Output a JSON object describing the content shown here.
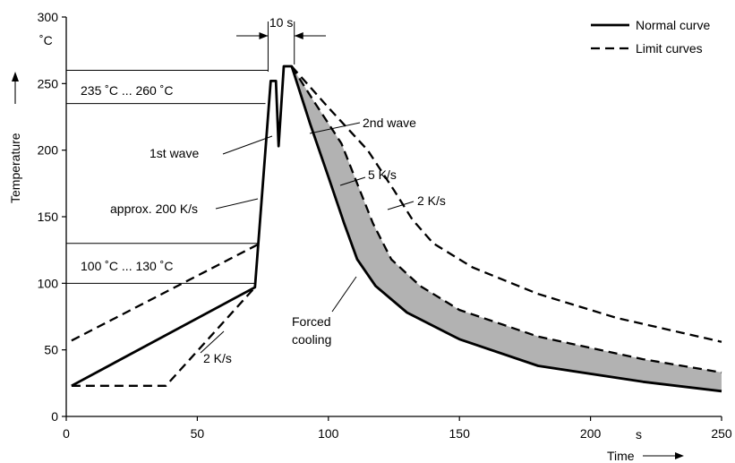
{
  "chart_data": {
    "type": "line",
    "xlabel": "Time",
    "ylabel": "Temperature",
    "x_unit": "s",
    "y_unit": "˚C",
    "xlim": [
      0,
      250
    ],
    "ylim": [
      0,
      300
    ],
    "x_ticks": [
      0,
      50,
      100,
      150,
      200,
      250
    ],
    "y_ticks": [
      0,
      50,
      100,
      150,
      200,
      250,
      300
    ],
    "grid": false,
    "legend_position": "top-right",
    "series": [
      {
        "name": "Normal curve",
        "style": "solid",
        "points": [
          [
            2,
            23
          ],
          [
            72,
            97
          ],
          [
            78,
            252
          ],
          [
            80,
            252
          ],
          [
            81,
            203
          ],
          [
            83,
            263
          ],
          [
            86,
            263
          ],
          [
            93,
            220
          ],
          [
            100,
            180
          ],
          [
            106,
            145
          ],
          [
            111,
            118
          ],
          [
            118,
            98
          ],
          [
            130,
            78
          ],
          [
            150,
            58
          ],
          [
            180,
            38
          ],
          [
            220,
            26
          ],
          [
            250,
            19
          ]
        ]
      },
      {
        "name": "Limit curves",
        "style": "dashed",
        "points": [
          [
            2,
            57
          ],
          [
            73,
            129
          ]
        ]
      },
      {
        "name": "Limit curves",
        "style": "dashed",
        "points": [
          [
            2,
            23
          ],
          [
            38,
            23
          ],
          [
            72,
            97
          ]
        ]
      },
      {
        "name": "Limit curves",
        "style": "dashed",
        "points": [
          [
            86,
            263
          ],
          [
            95,
            235
          ],
          [
            105,
            205
          ],
          [
            112,
            170
          ],
          [
            117,
            145
          ],
          [
            124,
            118
          ],
          [
            135,
            98
          ],
          [
            150,
            80
          ],
          [
            180,
            60
          ],
          [
            220,
            43
          ],
          [
            250,
            33
          ]
        ]
      },
      {
        "name": "Limit curves",
        "style": "dashed",
        "points": [
          [
            86,
            263
          ],
          [
            100,
            232
          ],
          [
            115,
            200
          ],
          [
            125,
            170
          ],
          [
            132,
            148
          ],
          [
            140,
            130
          ],
          [
            155,
            112
          ],
          [
            180,
            92
          ],
          [
            210,
            74
          ],
          [
            250,
            56
          ]
        ]
      }
    ],
    "shaded_band": {
      "upper": [
        [
          86,
          263
        ],
        [
          95,
          235
        ],
        [
          105,
          205
        ],
        [
          112,
          170
        ],
        [
          117,
          145
        ],
        [
          124,
          118
        ],
        [
          135,
          98
        ],
        [
          150,
          80
        ],
        [
          180,
          60
        ],
        [
          220,
          43
        ],
        [
          250,
          33
        ]
      ],
      "lower": [
        [
          86,
          263
        ],
        [
          93,
          220
        ],
        [
          100,
          180
        ],
        [
          106,
          145
        ],
        [
          111,
          118
        ],
        [
          118,
          98
        ],
        [
          130,
          78
        ],
        [
          150,
          58
        ],
        [
          180,
          38
        ],
        [
          220,
          26
        ],
        [
          250,
          19
        ]
      ]
    },
    "reference_lines": [
      {
        "y": 260,
        "x_to": 77
      },
      {
        "y": 235,
        "x_to": 76
      },
      {
        "y": 130,
        "x_to": 73
      },
      {
        "y": 100,
        "x_to": 72
      }
    ],
    "annotations": [
      {
        "text": "235 ˚C ... 260 ˚C"
      },
      {
        "text": "100 ˚C ... 130 ˚C"
      },
      {
        "text": "10 s"
      },
      {
        "text": "1st wave"
      },
      {
        "text": "2nd wave"
      },
      {
        "text": "approx. 200 K/s"
      },
      {
        "text": "5 K/s"
      },
      {
        "text": "2 K/s"
      },
      {
        "text": "2 K/s"
      },
      {
        "text": "Forced"
      },
      {
        "text": "cooling"
      }
    ]
  }
}
